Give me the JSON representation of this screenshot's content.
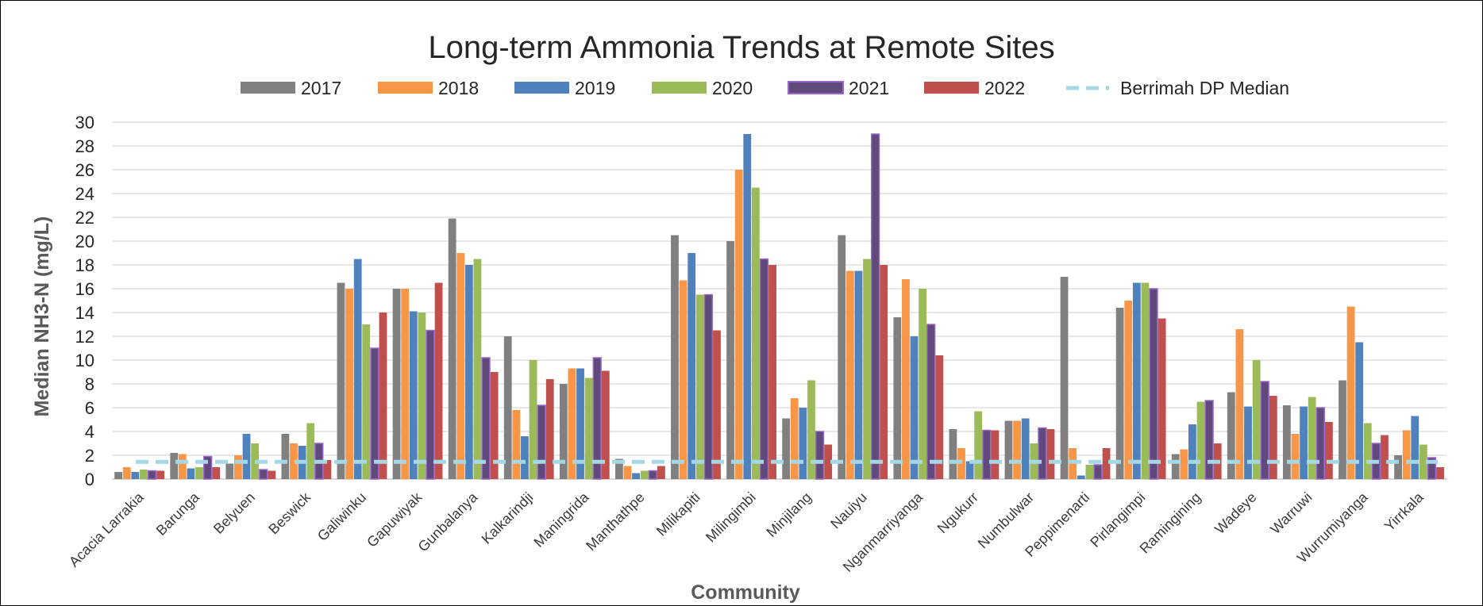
{
  "chart_data": {
    "type": "bar",
    "title": "Long-term Ammonia Trends at Remote Sites",
    "xlabel": "Community",
    "ylabel": "Median NH3-N (mg/L)",
    "ylim": [
      0,
      30
    ],
    "yticks": [
      "0",
      "2",
      "4",
      "6",
      "8",
      "10",
      "12",
      "14",
      "16",
      "18",
      "20",
      "22",
      "24",
      "26",
      "28",
      "30"
    ],
    "grid": true,
    "legend_position": "top",
    "categories": [
      "Acacia Larrakia",
      "Barunga",
      "Belyuen",
      "Beswick",
      "Galiwinku",
      "Gapuwiyak",
      "Gunbalanya",
      "Kalkarindji",
      "Maningrida",
      "Manthathpe",
      "Milikapiti",
      "Milingimbi",
      "Minjilang",
      "Nauiyu",
      "Nganmarriyanga",
      "Ngukurr",
      "Numbulwar",
      "Peppimenarti",
      "Pirlangimpi",
      "Ramingining",
      "Wadeye",
      "Warruwi",
      "Wurrumiyanga",
      "Yirrkala"
    ],
    "series": [
      {
        "name": "2017",
        "color": "#808080",
        "values": [
          0.6,
          2.2,
          1.3,
          3.8,
          16.5,
          16.0,
          21.9,
          12.0,
          8.0,
          1.7,
          20.5,
          20.0,
          5.1,
          20.5,
          13.6,
          4.2,
          4.9,
          17.0,
          14.4,
          2.1,
          7.3,
          6.2,
          8.3,
          2.0
        ]
      },
      {
        "name": "2018",
        "color": "#F79646",
        "values": [
          1.0,
          2.1,
          2.0,
          3.0,
          16.0,
          16.0,
          19.0,
          5.8,
          9.3,
          1.1,
          16.7,
          26.0,
          6.8,
          17.5,
          16.8,
          2.6,
          4.9,
          2.6,
          15.0,
          2.5,
          12.6,
          3.8,
          14.5,
          4.1
        ]
      },
      {
        "name": "2019",
        "color": "#4F81BD",
        "values": [
          0.6,
          0.9,
          3.8,
          2.8,
          18.5,
          14.1,
          18.0,
          3.6,
          9.3,
          0.5,
          19.0,
          29.0,
          6.0,
          17.5,
          12.0,
          1.5,
          5.1,
          0.3,
          16.5,
          4.6,
          6.1,
          6.1,
          11.5,
          5.3
        ]
      },
      {
        "name": "2020",
        "color": "#9BBB59",
        "values": [
          0.8,
          1.0,
          3.0,
          4.7,
          13.0,
          14.0,
          18.5,
          10.0,
          8.5,
          0.7,
          15.5,
          24.5,
          8.3,
          18.5,
          16.0,
          5.7,
          3.0,
          1.2,
          16.5,
          6.5,
          10.0,
          6.9,
          4.7,
          2.9
        ]
      },
      {
        "name": "2021",
        "color": "#604A7B",
        "border": "#9966CC",
        "values": [
          0.7,
          1.9,
          0.8,
          3.0,
          11.0,
          12.5,
          10.2,
          6.2,
          10.2,
          0.7,
          15.5,
          18.5,
          4.0,
          29.0,
          13.0,
          4.1,
          4.3,
          1.2,
          16.0,
          6.6,
          8.2,
          6.0,
          3.0,
          1.8
        ]
      },
      {
        "name": "2022",
        "color": "#C0504D",
        "values": [
          0.7,
          1.0,
          0.7,
          1.6,
          14.0,
          16.5,
          9.0,
          8.4,
          9.1,
          1.1,
          12.5,
          18.0,
          2.9,
          18.0,
          10.4,
          4.1,
          4.2,
          2.6,
          13.5,
          3.0,
          7.0,
          4.8,
          3.7,
          1.0
        ]
      }
    ],
    "reference_line": {
      "name": "Berrimah DP Median",
      "value": 1.45,
      "color": "#A5D7E5",
      "style": "dashed"
    }
  }
}
